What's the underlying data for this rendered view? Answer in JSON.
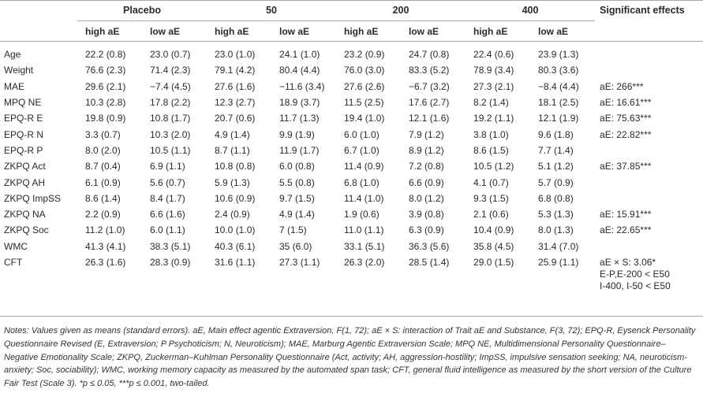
{
  "groups": [
    "Placebo",
    "50",
    "200",
    "400"
  ],
  "significant_header": "Significant effects",
  "subheaders": [
    "high aE",
    "low aE",
    "high aE",
    "low aE",
    "high aE",
    "low aE",
    "high aE",
    "low aE"
  ],
  "rows": [
    {
      "label": "Age",
      "values": [
        "22.2 (0.8)",
        "23.0 (0.7)",
        "23.0 (1.0)",
        "24.1 (1.0)",
        "23.2 (0.9)",
        "24.7 (0.8)",
        "22.4 (0.6)",
        "23.9 (1.3)"
      ],
      "sig": ""
    },
    {
      "label": "Weight",
      "values": [
        "76.6 (2.3)",
        "71.4 (2.3)",
        "79.1 (4.2)",
        "80.4 (4.4)",
        "76.0 (3.0)",
        "83.3 (5.2)",
        "78.9 (3.4)",
        "80.3 (3.6)"
      ],
      "sig": ""
    },
    {
      "label": "MAE",
      "values": [
        "29.6 (2.1)",
        "−7.4 (4.5)",
        "27.6 (1.6)",
        "−11.6 (3.4)",
        "27.6 (2.6)",
        "−6.7 (3.2)",
        "27.3 (2.1)",
        "−8.4 (4.4)"
      ],
      "sig": "aE: 266***"
    },
    {
      "label": "MPQ NE",
      "values": [
        "10.3 (2.8)",
        "17.8 (2.2)",
        "12.3 (2.7)",
        "18.9 (3.7)",
        "11.5 (2.5)",
        "17.6 (2.7)",
        "8.2 (1.4)",
        "18.1 (2.5)"
      ],
      "sig": "aE: 16.61***"
    },
    {
      "label": "EPQ-R E",
      "values": [
        "19.8 (0.9)",
        "10.8 (1.7)",
        "20.7 (0.6)",
        "11.7 (1.3)",
        "19.4 (1.0)",
        "12.1 (1.6)",
        "19.2 (1.1)",
        "12.1 (1.9)"
      ],
      "sig": "aE: 75.63***"
    },
    {
      "label": "EPQ-R N",
      "values": [
        "3.3 (0.7)",
        "10.3 (2.0)",
        "4.9 (1.4)",
        "9.9 (1.9)",
        "6.0 (1.0)",
        "7.9 (1.2)",
        "3.8 (1.0)",
        "9.6 (1.8)"
      ],
      "sig": "aE: 22.82***"
    },
    {
      "label": "EPQ-R P",
      "values": [
        "8.0 (2.0)",
        "10.5 (1.1)",
        "8.7 (1.1)",
        "11.9 (1.7)",
        "6.7 (1.0)",
        "8.9 (1.2)",
        "8.6 (1.5)",
        "7.7 (1.4)"
      ],
      "sig": ""
    },
    {
      "label": "ZKPQ Act",
      "values": [
        "8.7 (0.4)",
        "6.9 (1.1)",
        "10.8 (0.8)",
        "6.0 (0.8)",
        "11.4 (0.9)",
        "7.2 (0.8)",
        "10.5 (1.2)",
        "5.1 (1.2)"
      ],
      "sig": "aE: 37.85***"
    },
    {
      "label": "ZKPQ AH",
      "values": [
        "6.1 (0.9)",
        "5.6 (0.7)",
        "5.9 (1.3)",
        "5.5 (0.8)",
        "6.8 (1.0)",
        "6.6 (0.9)",
        "4.1 (0.7)",
        "5.7 (0.9)"
      ],
      "sig": ""
    },
    {
      "label": "ZKPQ ImpSS",
      "values": [
        "8.6 (1.4)",
        "8.4 (1.7)",
        "10.6 (0.9)",
        "9.7 (1.5)",
        "11.4 (1.0)",
        "8.0 (1.2)",
        "9.3 (1.5)",
        "6.8 (0.8)"
      ],
      "sig": ""
    },
    {
      "label": "ZKPQ NA",
      "values": [
        "2.2 (0.9)",
        "6.6 (1.6)",
        "2.4 (0.9)",
        "4.9 (1.4)",
        "1.9 (0.6)",
        "3.9 (0.8)",
        "2.1 (0.6)",
        "5.3 (1.3)"
      ],
      "sig": "aE: 15.91***"
    },
    {
      "label": "ZKPQ Soc",
      "values": [
        "11.2 (1.0)",
        "6.0 (1.1)",
        "10.0 (1.0)",
        "7 (1.5)",
        "11.0 (1.1)",
        "6.3 (0.9)",
        "10.4 (0.9)",
        "8.0 (1.3)"
      ],
      "sig": "aE: 22.65***"
    },
    {
      "label": "WMC",
      "values": [
        "41.3 (4.1)",
        "38.3 (5.1)",
        "40.3 (6.1)",
        "35 (6.0)",
        "33.1 (5.1)",
        "36.3 (5.6)",
        "35.8 (4.5)",
        "31.4 (7.0)"
      ],
      "sig": ""
    },
    {
      "label": "CFT",
      "values": [
        "26.3 (1.6)",
        "28.3 (0.9)",
        "31.6 (1.1)",
        "27.3 (1.1)",
        "26.3 (2.0)",
        "28.5 (1.4)",
        "29.0 (1.5)",
        "25.9 (1.1)"
      ],
      "sig": ""
    }
  ],
  "cft_sig_lines": [
    "aE × S: 3.06*",
    "E-P,E-200 < E50",
    "I-400, I-50 < E50"
  ],
  "notes": "Notes: Values given as means (standard errors). aE, Main effect agentic Extraversion, F(1, 72); aE × S: interaction of Trait aE and Substance, F(3, 72); EPQ-R, Eysenck Personality Questionnaire Revised (E, Extraversion; P Psychoticism; N, Neuroticism); MAE, Marburg Agentic Extraversion Scale; MPQ NE, Multidimensional Personality Questionnaire–Negative Emotionality Scale; ZKPQ, Zuckerman–Kuhlman Personality Questionnaire (Act, activity; AH, aggression-hostility; ImpSS, impulsive sensation seeking; NA, neuroticism-anxiety; Soc, sociability); WMC, working memory capacity as measured by the automated span task; CFT, general fluid intelligence as measured by the short version of the Culture Fair Test (Scale 3). *p ≤ 0.05, ***p ≤ 0.001, two-tailed."
}
